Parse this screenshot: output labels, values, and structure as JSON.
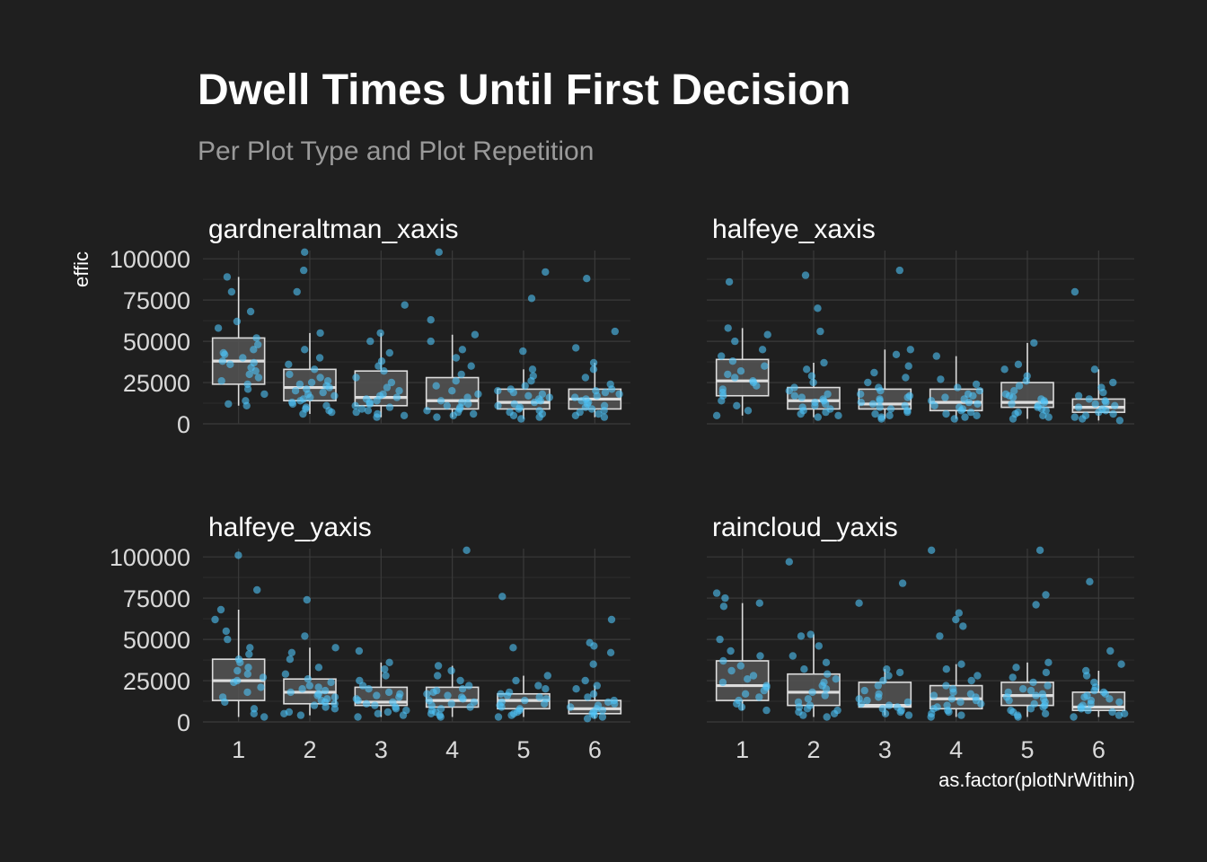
{
  "chart_data": {
    "type": "boxplot",
    "title": "Dwell Times Until First Decision",
    "subtitle": "Per Plot Type and Plot Repetition",
    "xlabel": "as.factor(plotNrWithin)",
    "ylabel": "effic",
    "categories": [
      "1",
      "2",
      "3",
      "4",
      "5",
      "6"
    ],
    "yticks": [
      0,
      25000,
      50000,
      75000,
      100000
    ],
    "ytick_labels": [
      "0",
      "25000",
      "50000",
      "75000",
      "100000"
    ],
    "ylim": [
      0,
      105000
    ],
    "colors": {
      "background": "#1f1f1f",
      "points": "#4fc3f7",
      "box_fill": "#555555",
      "box_outline": "#dddddd"
    },
    "facets": [
      {
        "name": "gardneraltman_xaxis",
        "boxes": [
          {
            "q1": 24000,
            "median": 38000,
            "q3": 52000,
            "whisker_low": 11000,
            "whisker_high": 89000,
            "points": [
              11000,
              12000,
              14000,
              18000,
              21000,
              24000,
              26000,
              28000,
              30000,
              32000,
              34000,
              36000,
              37000,
              38000,
              40000,
              42000,
              43000,
              45000,
              48000,
              52000,
              58000,
              62000,
              68000,
              80000,
              89000
            ]
          },
          {
            "q1": 14000,
            "median": 22000,
            "q3": 33000,
            "whisker_low": 6000,
            "whisker_high": 55000,
            "points": [
              6000,
              7000,
              8000,
              9000,
              10000,
              11000,
              12000,
              13000,
              14000,
              15000,
              16000,
              17000,
              18000,
              19000,
              20000,
              21000,
              22000,
              23000,
              24000,
              25000,
              26000,
              28000,
              30000,
              33000,
              36000,
              40000,
              45000,
              55000,
              80000,
              93000,
              104000
            ]
          },
          {
            "q1": 11000,
            "median": 16000,
            "q3": 32000,
            "whisker_low": 4000,
            "whisker_high": 55000,
            "points": [
              4000,
              5000,
              6000,
              7000,
              8000,
              9000,
              10000,
              11000,
              12000,
              13000,
              14000,
              15000,
              16000,
              17000,
              18000,
              20000,
              22000,
              25000,
              28000,
              32000,
              35000,
              38000,
              43000,
              50000,
              55000,
              72000
            ]
          },
          {
            "q1": 9000,
            "median": 14000,
            "q3": 28000,
            "whisker_low": 4000,
            "whisker_high": 54000,
            "points": [
              4000,
              5000,
              6000,
              7000,
              8000,
              9000,
              10000,
              11000,
              12000,
              13000,
              14000,
              16000,
              18000,
              20000,
              23000,
              26000,
              30000,
              35000,
              40000,
              45000,
              50000,
              54000,
              63000,
              104000
            ]
          },
          {
            "q1": 9000,
            "median": 13000,
            "q3": 21000,
            "whisker_low": 3000,
            "whisker_high": 33000,
            "points": [
              3000,
              4000,
              5000,
              6000,
              7000,
              8000,
              9000,
              10000,
              11000,
              12000,
              13000,
              14000,
              15000,
              16000,
              17000,
              18000,
              19000,
              20000,
              21000,
              23000,
              26000,
              29000,
              33000,
              44000,
              76000,
              92000
            ]
          },
          {
            "q1": 9000,
            "median": 15000,
            "q3": 21000,
            "whisker_low": 4000,
            "whisker_high": 37000,
            "points": [
              4000,
              5000,
              6000,
              7000,
              8000,
              9000,
              10000,
              11000,
              12000,
              13000,
              14000,
              15000,
              16000,
              17000,
              18000,
              19000,
              20000,
              21000,
              24000,
              28000,
              33000,
              37000,
              46000,
              56000,
              88000
            ]
          }
        ]
      },
      {
        "name": "halfeye_xaxis",
        "boxes": [
          {
            "q1": 17000,
            "median": 26000,
            "q3": 39000,
            "whisker_low": 5000,
            "whisker_high": 58000,
            "points": [
              5000,
              8000,
              11000,
              14000,
              17000,
              19000,
              21000,
              23000,
              25000,
              26000,
              28000,
              30000,
              32000,
              35000,
              38000,
              41000,
              45000,
              50000,
              54000,
              58000,
              86000
            ]
          },
          {
            "q1": 9000,
            "median": 14000,
            "q3": 22000,
            "whisker_low": 4000,
            "whisker_high": 37000,
            "points": [
              4000,
              5000,
              6000,
              7000,
              8000,
              9000,
              10000,
              11000,
              12000,
              13000,
              14000,
              15000,
              16000,
              17000,
              18000,
              20000,
              22000,
              25000,
              29000,
              33000,
              37000,
              56000,
              70000,
              90000
            ]
          },
          {
            "q1": 9000,
            "median": 12000,
            "q3": 21000,
            "whisker_low": 3000,
            "whisker_high": 45000,
            "points": [
              3000,
              4000,
              5000,
              6000,
              7000,
              8000,
              9000,
              10000,
              11000,
              12000,
              13000,
              14000,
              15000,
              16000,
              17000,
              18000,
              20000,
              22000,
              25000,
              28000,
              31000,
              35000,
              42000,
              45000,
              93000
            ]
          },
          {
            "q1": 8000,
            "median": 13000,
            "q3": 21000,
            "whisker_low": 3000,
            "whisker_high": 41000,
            "points": [
              3000,
              4000,
              5000,
              6000,
              7000,
              8000,
              9000,
              10000,
              11000,
              12000,
              13000,
              14000,
              15000,
              16000,
              17000,
              18000,
              20000,
              22000,
              24000,
              27000,
              41000
            ]
          },
          {
            "q1": 10000,
            "median": 13000,
            "q3": 25000,
            "whisker_low": 3000,
            "whisker_high": 49000,
            "points": [
              3000,
              4000,
              5000,
              6000,
              7000,
              8000,
              9000,
              10000,
              11000,
              12000,
              13000,
              14000,
              15000,
              16000,
              17000,
              18000,
              20000,
              23000,
              26000,
              29000,
              33000,
              36000,
              49000
            ]
          },
          {
            "q1": 7000,
            "median": 10000,
            "q3": 15000,
            "whisker_low": 2000,
            "whisker_high": 33000,
            "points": [
              2000,
              3000,
              4000,
              5000,
              6000,
              7000,
              8000,
              9000,
              10000,
              11000,
              12000,
              13000,
              14000,
              15000,
              17000,
              19000,
              22000,
              25000,
              33000,
              80000
            ]
          }
        ]
      },
      {
        "name": "halfeye_yaxis",
        "boxes": [
          {
            "q1": 13000,
            "median": 25000,
            "q3": 38000,
            "whisker_low": 3000,
            "whisker_high": 68000,
            "points": [
              3000,
              5000,
              8000,
              12000,
              15000,
              18000,
              21000,
              24000,
              25000,
              27000,
              29000,
              31000,
              33000,
              36000,
              38000,
              41000,
              45000,
              50000,
              55000,
              62000,
              68000,
              80000,
              101000
            ]
          },
          {
            "q1": 11000,
            "median": 18000,
            "q3": 26000,
            "whisker_low": 4000,
            "whisker_high": 45000,
            "points": [
              4000,
              5000,
              6000,
              8000,
              9000,
              10000,
              11000,
              12000,
              13000,
              14000,
              15000,
              16000,
              17000,
              18000,
              19000,
              20000,
              21000,
              22000,
              24000,
              26000,
              29000,
              33000,
              38000,
              42000,
              45000,
              52000,
              74000
            ]
          },
          {
            "q1": 10000,
            "median": 12000,
            "q3": 21000,
            "whisker_low": 3000,
            "whisker_high": 36000,
            "points": [
              3000,
              4000,
              5000,
              6000,
              7000,
              8000,
              9000,
              10000,
              11000,
              12000,
              13000,
              14000,
              15000,
              16000,
              17000,
              18000,
              20000,
              22000,
              25000,
              28000,
              32000,
              36000,
              43000
            ]
          },
          {
            "q1": 9000,
            "median": 13000,
            "q3": 21000,
            "whisker_low": 3000,
            "whisker_high": 34000,
            "points": [
              3000,
              4000,
              5000,
              6000,
              7000,
              8000,
              9000,
              10000,
              11000,
              12000,
              13000,
              14000,
              15000,
              16000,
              17000,
              18000,
              19000,
              20000,
              22000,
              25000,
              28000,
              31000,
              34000,
              104000
            ]
          },
          {
            "q1": 8000,
            "median": 13000,
            "q3": 17000,
            "whisker_low": 3000,
            "whisker_high": 28000,
            "points": [
              3000,
              4000,
              5000,
              6000,
              7000,
              8000,
              9000,
              10000,
              11000,
              12000,
              13000,
              14000,
              15000,
              16000,
              17000,
              18000,
              20000,
              22000,
              25000,
              28000,
              45000,
              76000
            ]
          },
          {
            "q1": 5000,
            "median": 8000,
            "q3": 13000,
            "whisker_low": 2000,
            "whisker_high": 22000,
            "points": [
              2000,
              3000,
              4000,
              5000,
              6000,
              7000,
              8000,
              9000,
              10000,
              11000,
              12000,
              13000,
              15000,
              17000,
              20000,
              22000,
              25000,
              35000,
              42000,
              46000,
              48000,
              62000
            ]
          }
        ]
      },
      {
        "name": "raincloud_yaxis",
        "boxes": [
          {
            "q1": 13000,
            "median": 22000,
            "q3": 37000,
            "whisker_low": 7000,
            "whisker_high": 72000,
            "points": [
              7000,
              9000,
              11000,
              13000,
              15000,
              17000,
              19000,
              21000,
              22000,
              24000,
              26000,
              28000,
              31000,
              34000,
              37000,
              40000,
              43000,
              50000,
              70000,
              72000,
              75000,
              78000
            ]
          },
          {
            "q1": 10000,
            "median": 18000,
            "q3": 29000,
            "whisker_low": 3000,
            "whisker_high": 53000,
            "points": [
              3000,
              4000,
              5000,
              6000,
              7000,
              8000,
              9000,
              10000,
              12000,
              14000,
              16000,
              18000,
              20000,
              22000,
              24000,
              26000,
              29000,
              32000,
              36000,
              40000,
              46000,
              52000,
              53000,
              97000
            ]
          },
          {
            "q1": 9000,
            "median": 10000,
            "q3": 24000,
            "whisker_low": 4000,
            "whisker_high": 32000,
            "points": [
              4000,
              5000,
              6000,
              7000,
              8000,
              9000,
              10000,
              11000,
              12000,
              13000,
              14000,
              15000,
              17000,
              19000,
              22000,
              25000,
              28000,
              30000,
              32000,
              72000,
              84000
            ]
          },
          {
            "q1": 8000,
            "median": 14000,
            "q3": 22000,
            "whisker_low": 3000,
            "whisker_high": 35000,
            "points": [
              3000,
              4000,
              5000,
              6000,
              7000,
              8000,
              9000,
              10000,
              11000,
              12000,
              13000,
              14000,
              15000,
              16000,
              17000,
              18000,
              20000,
              22000,
              25000,
              28000,
              32000,
              35000,
              52000,
              58000,
              62000,
              66000,
              104000
            ]
          },
          {
            "q1": 10000,
            "median": 16000,
            "q3": 24000,
            "whisker_low": 3000,
            "whisker_high": 36000,
            "points": [
              3000,
              4000,
              5000,
              6000,
              7000,
              8000,
              9000,
              10000,
              11000,
              12000,
              13000,
              14000,
              15000,
              16000,
              17000,
              18000,
              19000,
              20000,
              22000,
              24000,
              27000,
              30000,
              33000,
              36000,
              71000,
              77000,
              104000
            ]
          },
          {
            "q1": 7000,
            "median": 9000,
            "q3": 18000,
            "whisker_low": 3000,
            "whisker_high": 31000,
            "points": [
              3000,
              4000,
              5000,
              6000,
              7000,
              8000,
              9000,
              10000,
              11000,
              12000,
              13000,
              14000,
              15000,
              16000,
              17000,
              18000,
              19000,
              21000,
              24000,
              28000,
              31000,
              35000,
              43000,
              85000
            ]
          }
        ]
      }
    ]
  }
}
